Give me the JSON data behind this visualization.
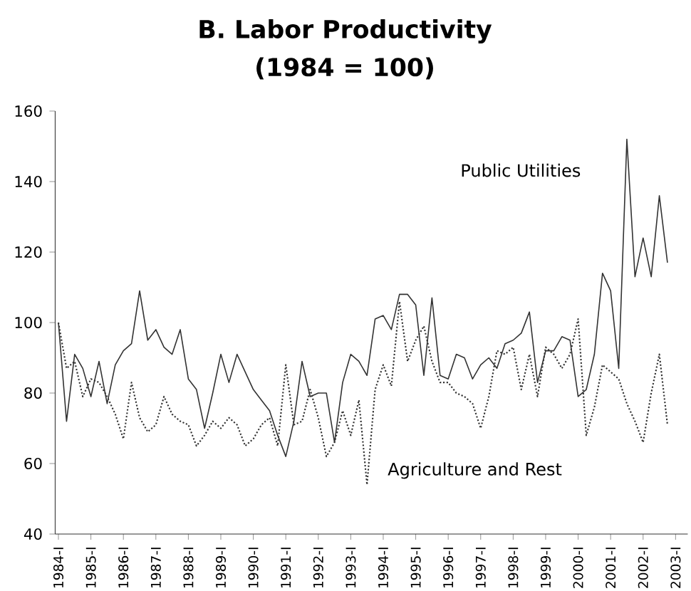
{
  "chart_data": {
    "type": "line",
    "title": "B. Labor Productivity",
    "subtitle": "(1984 = 100)",
    "categories": [
      "1984-I",
      null,
      null,
      null,
      "1985-I",
      null,
      null,
      null,
      "1986-I",
      null,
      null,
      null,
      "1987-I",
      null,
      null,
      null,
      "1988-I",
      null,
      null,
      null,
      "1989-I",
      null,
      null,
      null,
      "1990-I",
      null,
      null,
      null,
      "1991-I",
      null,
      null,
      null,
      "1992-I",
      null,
      null,
      null,
      "1993-I",
      null,
      null,
      null,
      "1994-I",
      null,
      null,
      null,
      "1995-I",
      null,
      null,
      null,
      "1996-I",
      null,
      null,
      null,
      "1997-I",
      null,
      null,
      null,
      "1998-I",
      null,
      null,
      null,
      "1999-I",
      null,
      null,
      null,
      "2000-I",
      null,
      null,
      null,
      "2001-I",
      null,
      null,
      null,
      "2002-I",
      null,
      null,
      null,
      "2003-I"
    ],
    "series": [
      {
        "name": "Public Utilities",
        "color": "#333333",
        "line_style": "solid",
        "values": [
          100,
          72,
          91,
          87,
          79,
          89,
          77,
          88,
          92,
          94,
          109,
          95,
          98,
          93,
          91,
          98,
          84,
          81,
          70,
          80,
          91,
          83,
          91,
          86,
          81,
          78,
          75,
          68,
          62,
          72,
          89,
          79,
          80,
          80,
          66,
          83,
          91,
          89,
          85,
          101,
          102,
          98,
          108,
          108,
          105,
          85,
          107,
          85,
          84,
          91,
          90,
          84,
          88,
          90,
          87,
          94,
          95,
          97,
          103,
          83,
          92,
          92,
          96,
          95,
          79,
          81,
          91,
          114,
          109,
          87,
          152,
          113,
          124,
          113,
          136,
          117,
          null
        ]
      },
      {
        "name": "Agriculture and Rest",
        "color": "#333333",
        "line_style": "dotted",
        "values": [
          100,
          87,
          89,
          79,
          84,
          83,
          79,
          74,
          67,
          83,
          73,
          69,
          71,
          79,
          74,
          72,
          71,
          65,
          68,
          72,
          70,
          73,
          71,
          65,
          67,
          71,
          73,
          65,
          88,
          71,
          72,
          81,
          73,
          62,
          66,
          75,
          68,
          78,
          54,
          81,
          88,
          82,
          106,
          89,
          95,
          99,
          89,
          83,
          83,
          80,
          79,
          77,
          70,
          79,
          92,
          91,
          93,
          81,
          91,
          79,
          93,
          91,
          87,
          91,
          101,
          68,
          76,
          88,
          86,
          84,
          77,
          72,
          66,
          80,
          91,
          71,
          null
        ]
      }
    ],
    "ylim": [
      40,
      160
    ],
    "yticks": [
      40,
      60,
      80,
      100,
      120,
      140,
      160
    ],
    "marker": "none",
    "legend": false,
    "grid": false
  }
}
